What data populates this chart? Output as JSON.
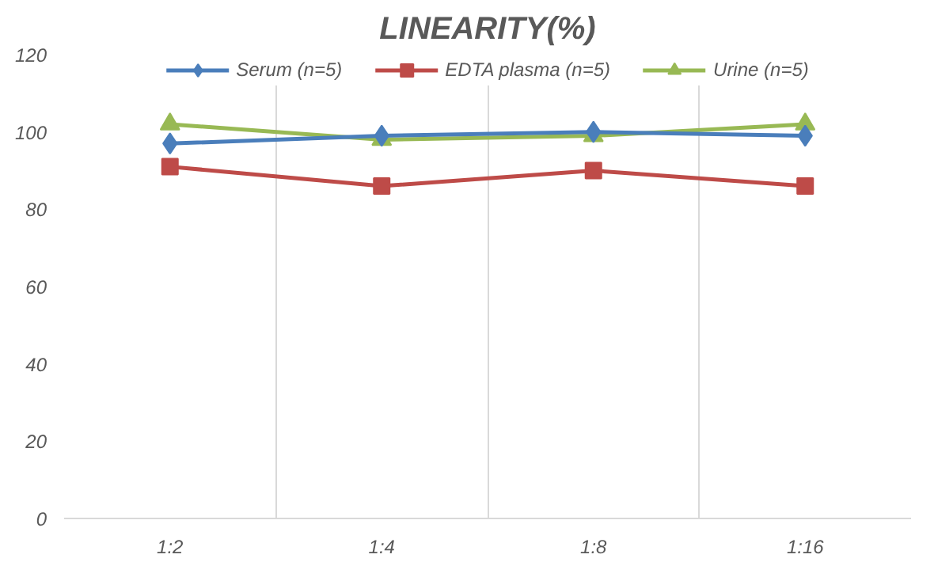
{
  "chart_data": {
    "type": "line",
    "title": "LINEARITY(%)",
    "categories": [
      "1:2",
      "1:4",
      "1:8",
      "1:16"
    ],
    "series": [
      {
        "name": "Serum (n=5)",
        "color": "#4a7ebb",
        "values": [
          97,
          99,
          100,
          99
        ],
        "marker": "diamond"
      },
      {
        "name": "EDTA plasma (n=5)",
        "color": "#be4b48",
        "values": [
          91,
          86,
          90,
          86
        ],
        "marker": "square"
      },
      {
        "name": "Urine (n=5)",
        "color": "#98b954",
        "values": [
          102,
          98,
          99,
          102
        ],
        "marker": "triangle"
      }
    ],
    "ylim": [
      0,
      120
    ],
    "yticks": [
      0,
      20,
      40,
      60,
      80,
      100,
      120
    ],
    "grid": "x",
    "legend": "top"
  }
}
